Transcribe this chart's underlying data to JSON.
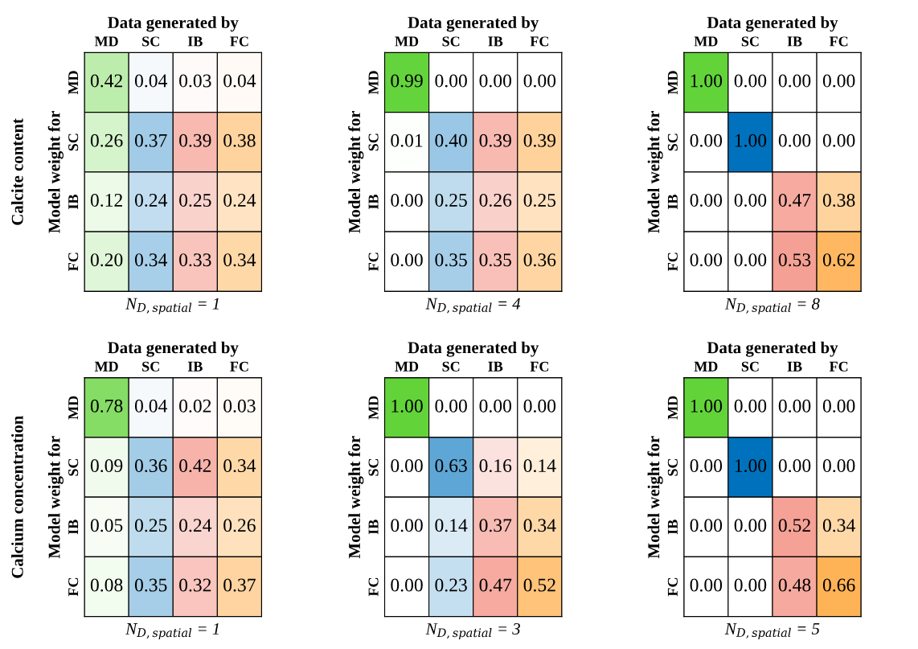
{
  "chart_data": [
    {
      "type": "heatmap",
      "title": "Data generated by",
      "xlabel": "N$_{D,spatial}$ = 1",
      "ylabel": "Model weight for",
      "annotations": [
        "Calcite content"
      ],
      "categories": [
        "MD",
        "SC",
        "IB",
        "FC"
      ],
      "y_categories": [
        "MD",
        "SC",
        "IB",
        "FC"
      ],
      "colors": [
        "#62d43a",
        "#0072bd",
        "#ec4b35",
        "#ff8c00"
      ],
      "cells": [
        [
          0.42,
          0.04,
          0.03,
          0.04
        ],
        [
          0.26,
          0.37,
          0.39,
          0.38
        ],
        [
          0.12,
          0.24,
          0.25,
          0.24
        ],
        [
          0.2,
          0.34,
          0.33,
          0.34
        ]
      ],
      "cell_labels": [
        [
          "0.42",
          "0.04",
          "0.03",
          "0.04"
        ],
        [
          "0.26",
          "0.37",
          "0.39",
          "0.38"
        ],
        [
          "0.12",
          "0.24",
          "0.25",
          "0.24"
        ],
        [
          "0.20",
          "0.34",
          "0.33",
          "0.34"
        ]
      ]
    },
    {
      "type": "heatmap",
      "title": "Data generated by",
      "xlabel": "N$_{D,spatial}$ = 4",
      "ylabel": "Model weight for",
      "categories": [
        "MD",
        "SC",
        "IB",
        "FC"
      ],
      "y_categories": [
        "MD",
        "SC",
        "IB",
        "FC"
      ],
      "colors": [
        "#62d43a",
        "#0072bd",
        "#ec4b35",
        "#ff8c00"
      ],
      "cells": [
        [
          0.99,
          0.0,
          0.0,
          0.0
        ],
        [
          0.01,
          0.4,
          0.39,
          0.39
        ],
        [
          0.0,
          0.25,
          0.26,
          0.25
        ],
        [
          0.0,
          0.35,
          0.35,
          0.36
        ]
      ],
      "cell_labels": [
        [
          "0.99",
          "0.00",
          "0.00",
          "0.00"
        ],
        [
          "0.01",
          "0.40",
          "0.39",
          "0.39"
        ],
        [
          "0.00",
          "0.25",
          "0.26",
          "0.25"
        ],
        [
          "0.00",
          "0.35",
          "0.35",
          "0.36"
        ]
      ]
    },
    {
      "type": "heatmap",
      "title": "Data generated by",
      "xlabel": "N$_{D,spatial}$ = 8",
      "ylabel": "Model weight for",
      "categories": [
        "MD",
        "SC",
        "IB",
        "FC"
      ],
      "y_categories": [
        "MD",
        "SC",
        "IB",
        "FC"
      ],
      "colors": [
        "#62d43a",
        "#0072bd",
        "#ec4b35",
        "#ff8c00"
      ],
      "cells": [
        [
          1.0,
          0.0,
          0.0,
          0.0
        ],
        [
          0.0,
          1.0,
          0.0,
          0.0
        ],
        [
          0.0,
          0.0,
          0.47,
          0.38
        ],
        [
          0.0,
          0.0,
          0.53,
          0.62
        ]
      ],
      "cell_labels": [
        [
          "1.00",
          "0.00",
          "0.00",
          "0.00"
        ],
        [
          "0.00",
          "1.00",
          "0.00",
          "0.00"
        ],
        [
          "0.00",
          "0.00",
          "0.47",
          "0.38"
        ],
        [
          "0.00",
          "0.00",
          "0.53",
          "0.62"
        ]
      ]
    },
    {
      "type": "heatmap",
      "title": "Data generated by",
      "xlabel": "N$_{D,spatial}$ = 1",
      "ylabel": "Model weight for",
      "annotations": [
        "Calcium concentration"
      ],
      "categories": [
        "MD",
        "SC",
        "IB",
        "FC"
      ],
      "y_categories": [
        "MD",
        "SC",
        "IB",
        "FC"
      ],
      "colors": [
        "#62d43a",
        "#0072bd",
        "#ec4b35",
        "#ff8c00"
      ],
      "cells": [
        [
          0.78,
          0.04,
          0.02,
          0.03
        ],
        [
          0.09,
          0.36,
          0.42,
          0.34
        ],
        [
          0.05,
          0.25,
          0.24,
          0.26
        ],
        [
          0.08,
          0.35,
          0.32,
          0.37
        ]
      ],
      "cell_labels": [
        [
          "0.78",
          "0.04",
          "0.02",
          "0.03"
        ],
        [
          "0.09",
          "0.36",
          "0.42",
          "0.34"
        ],
        [
          "0.05",
          "0.25",
          "0.24",
          "0.26"
        ],
        [
          "0.08",
          "0.35",
          "0.32",
          "0.37"
        ]
      ]
    },
    {
      "type": "heatmap",
      "title": "Data generated by",
      "xlabel": "N$_{D,spatial}$ = 3",
      "ylabel": "Model weight for",
      "categories": [
        "MD",
        "SC",
        "IB",
        "FC"
      ],
      "y_categories": [
        "MD",
        "SC",
        "IB",
        "FC"
      ],
      "colors": [
        "#62d43a",
        "#0072bd",
        "#ec4b35",
        "#ff8c00"
      ],
      "cells": [
        [
          1.0,
          0.0,
          0.0,
          0.0
        ],
        [
          0.0,
          0.63,
          0.16,
          0.14
        ],
        [
          0.0,
          0.14,
          0.37,
          0.34
        ],
        [
          0.0,
          0.23,
          0.47,
          0.52
        ]
      ],
      "cell_labels": [
        [
          "1.00",
          "0.00",
          "0.00",
          "0.00"
        ],
        [
          "0.00",
          "0.63",
          "0.16",
          "0.14"
        ],
        [
          "0.00",
          "0.14",
          "0.37",
          "0.34"
        ],
        [
          "0.00",
          "0.23",
          "0.47",
          "0.52"
        ]
      ]
    },
    {
      "type": "heatmap",
      "title": "Data generated by",
      "xlabel": "N$_{D,spatial}$ = 5",
      "ylabel": "Model weight for",
      "categories": [
        "MD",
        "SC",
        "IB",
        "FC"
      ],
      "y_categories": [
        "MD",
        "SC",
        "IB",
        "FC"
      ],
      "colors": [
        "#62d43a",
        "#0072bd",
        "#ec4b35",
        "#ff8c00"
      ],
      "cells": [
        [
          1.0,
          0.0,
          0.0,
          0.0
        ],
        [
          0.0,
          1.0,
          0.0,
          0.0
        ],
        [
          0.0,
          0.0,
          0.52,
          0.34
        ],
        [
          0.0,
          0.0,
          0.48,
          0.66
        ]
      ],
      "cell_labels": [
        [
          "1.00",
          "0.00",
          "0.00",
          "0.00"
        ],
        [
          "0.00",
          "1.00",
          "0.00",
          "0.00"
        ],
        [
          "0.00",
          "0.00",
          "0.52",
          "0.34"
        ],
        [
          "0.00",
          "0.00",
          "0.48",
          "0.66"
        ]
      ]
    }
  ]
}
